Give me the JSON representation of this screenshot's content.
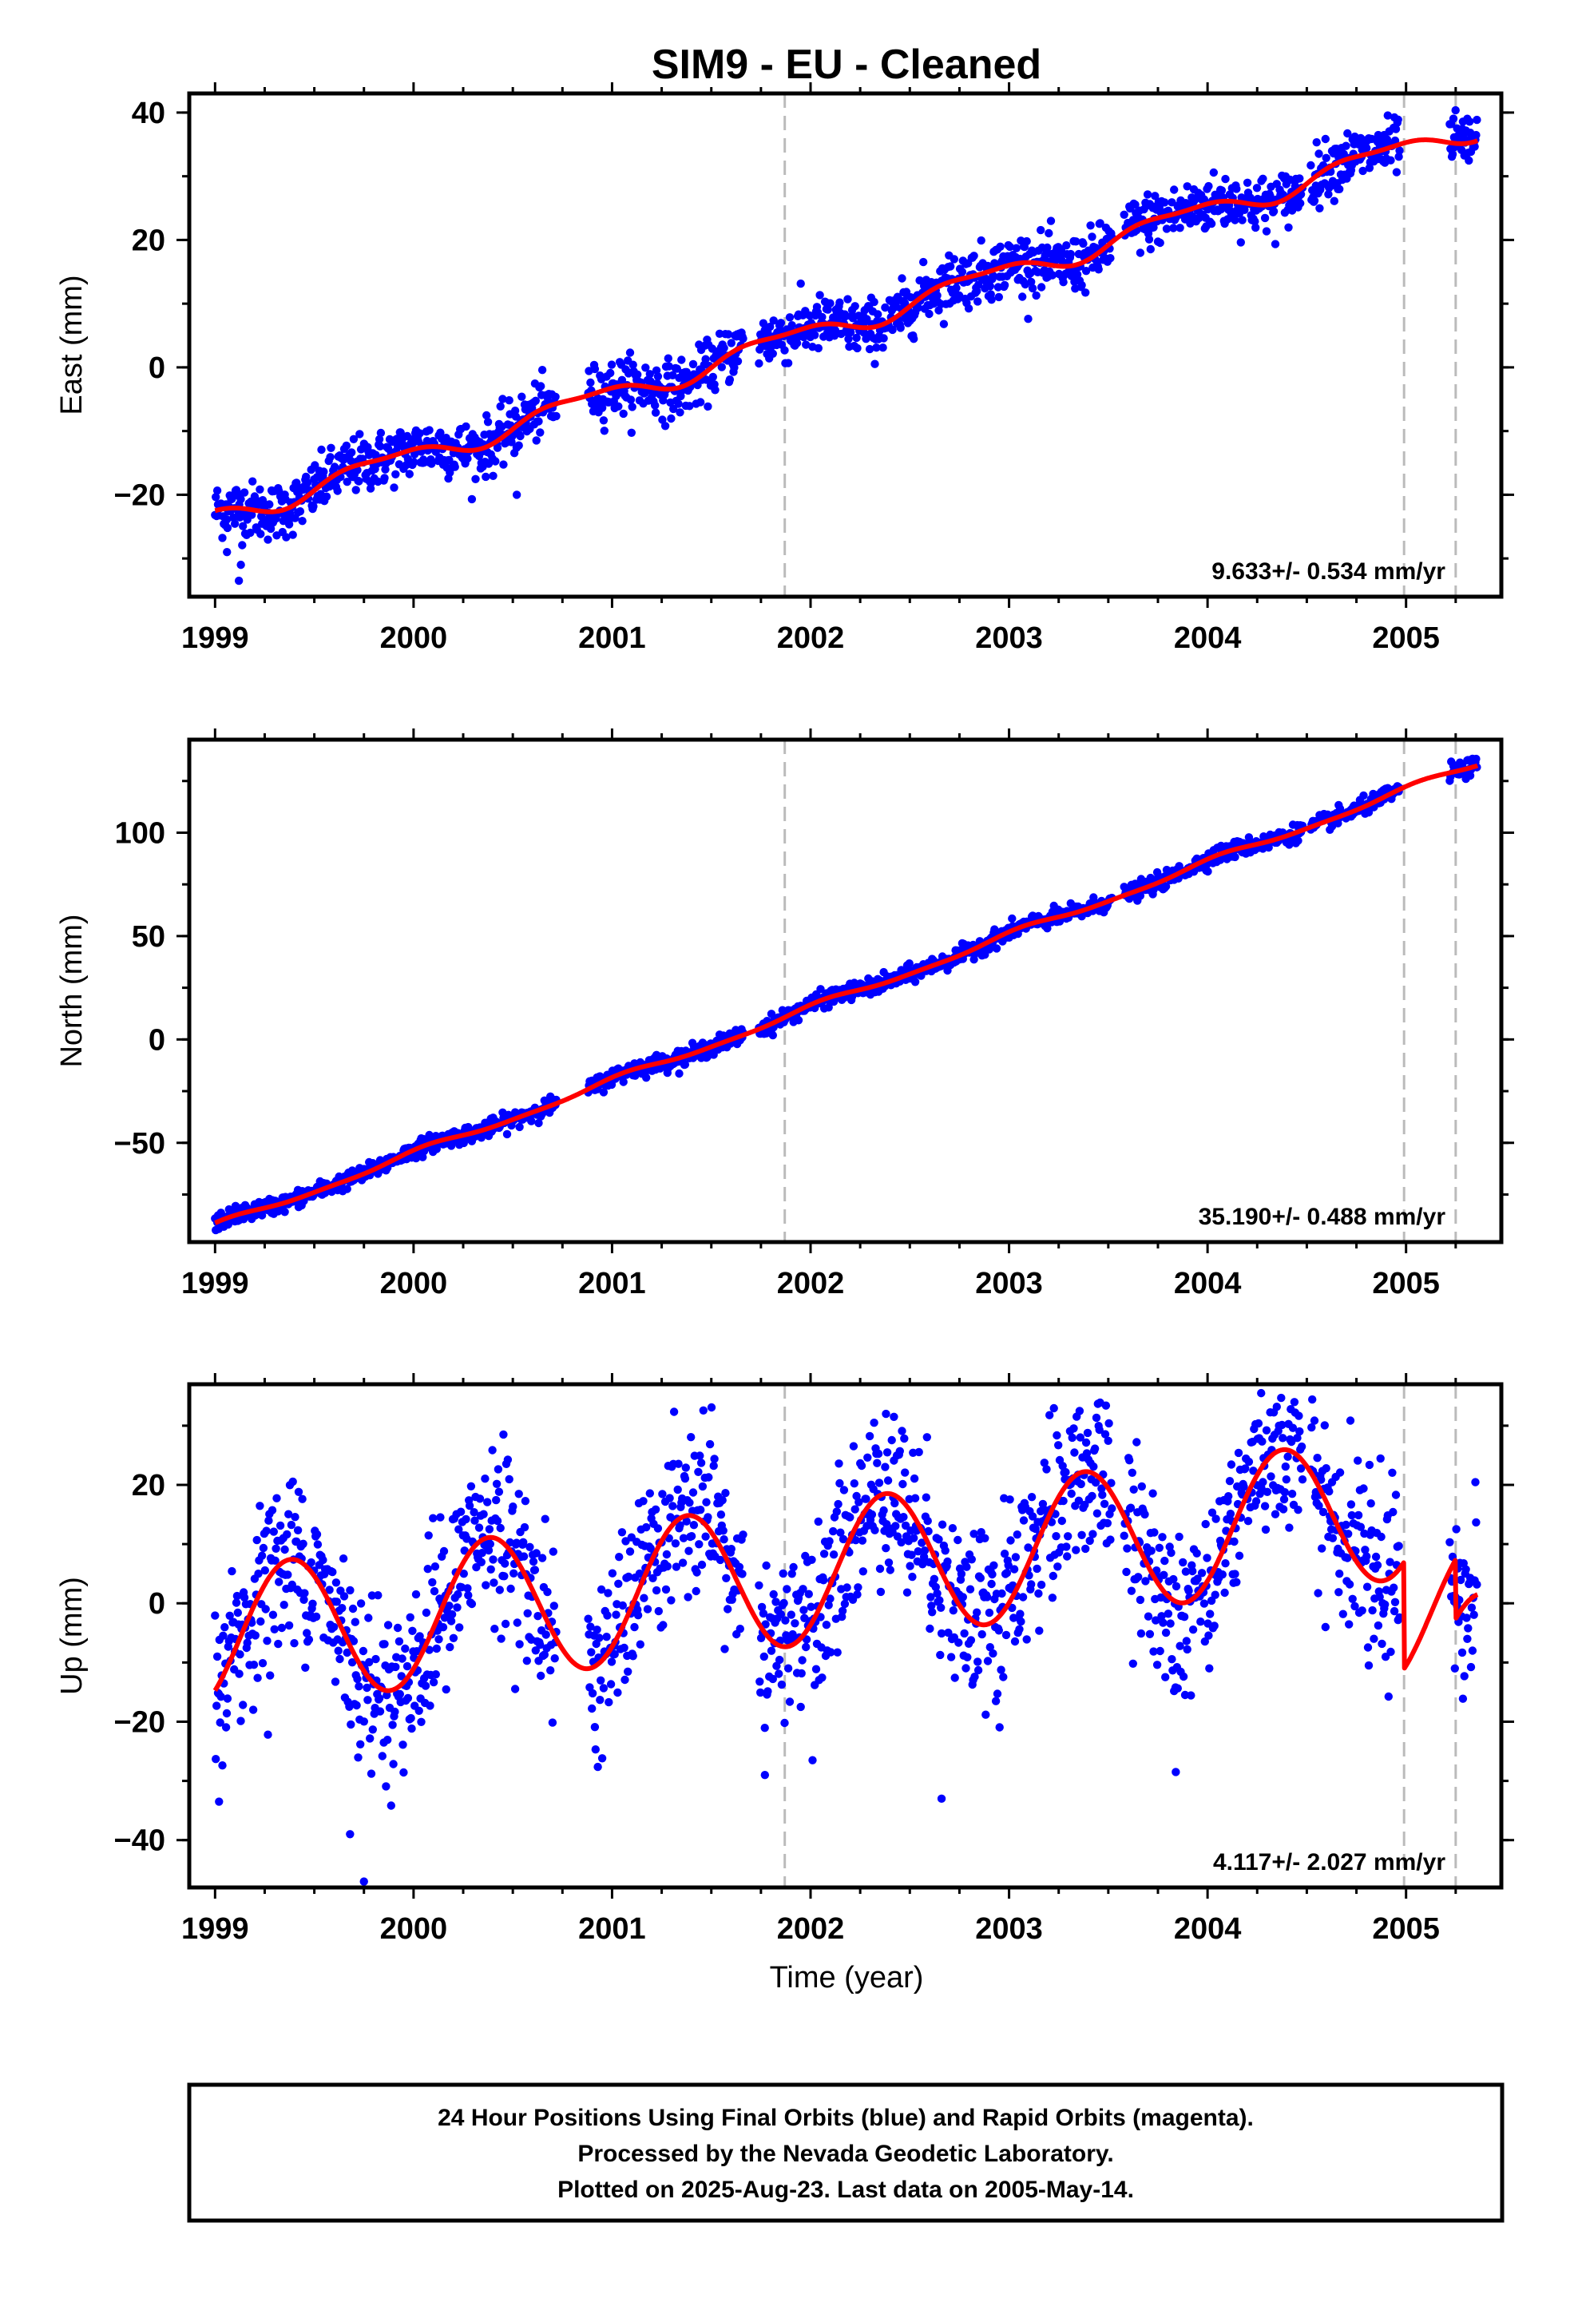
{
  "chart_data": {
    "title": "SIM9  - EU - Cleaned",
    "xlabel": "Time (year)",
    "x_ticks": [
      "1999",
      "2000",
      "2001",
      "2002",
      "2003",
      "2004",
      "2005"
    ],
    "xlim": [
      1998.87,
      2005.48
    ],
    "vertical_lines": [
      2001.87,
      2004.99,
      2005.25
    ],
    "colors": {
      "final_orbits": "#0000ff",
      "model_fit": "#ff0000",
      "event_line": "#bbbbbb"
    },
    "panels": [
      {
        "type": "scatter",
        "component": "East",
        "ylabel": "East (mm)",
        "ylim": [
          -36,
          43
        ],
        "y_ticks": [
          40,
          20,
          0,
          -20
        ],
        "y_tick_labels": [
          "40",
          "20",
          "0",
          "−20"
        ],
        "rate_label": "9.633+/- 0.534 mm/yr",
        "rate_mm_per_yr": 9.633,
        "anchor": {
          "t0": 1999.0,
          "y0": -23.5
        },
        "seasonal": {
          "annual_amp": 1.6,
          "annual_phase": 2.6,
          "semiannual_amp": 0.6,
          "semiannual_phase": 0.3
        },
        "noise_sd": 2.2,
        "steps": [],
        "outliers": [
          [
            1999.12,
            -33.5
          ],
          [
            1999.13,
            -31.0
          ],
          [
            1999.06,
            -29.0
          ],
          [
            2000.52,
            -20.0
          ]
        ]
      },
      {
        "type": "scatter",
        "component": "North",
        "ylabel": "North (mm)",
        "ylim": [
          -98,
          145
        ],
        "y_ticks": [
          100,
          50,
          0,
          -50
        ],
        "y_tick_labels": [
          "100",
          "50",
          "0",
          "−50"
        ],
        "rate_label": "35.190+/- 0.488 mm/yr",
        "rate_mm_per_yr": 35.19,
        "anchor": {
          "t0": 1999.0,
          "y0": -90.5
        },
        "seasonal": {
          "annual_amp": 1.5,
          "annual_phase": 1.2,
          "semiannual_amp": 0.5,
          "semiannual_phase": 0.8
        },
        "noise_sd": 2.0,
        "steps": [],
        "outliers": []
      },
      {
        "type": "scatter",
        "component": "Up",
        "ylabel": "Up (mm)",
        "ylim": [
          -48,
          37
        ],
        "y_ticks": [
          20,
          0,
          -20,
          -40
        ],
        "y_tick_labels": [
          "20",
          "0",
          "−20",
          "−40"
        ],
        "rate_label": "4.117+/- 2.027 mm/yr",
        "rate_mm_per_yr": 4.117,
        "anchor": {
          "t0": 1999.0,
          "y0": -10.0
        },
        "seasonal": {
          "annual_amp": 12.0,
          "annual_phase": 0.0,
          "semiannual_amp": 0.0,
          "semiannual_phase": 0.0
        },
        "noise_sd": 7.0,
        "steps": [
          [
            2004.99,
            -18.0
          ],
          [
            2005.25,
            -10.0
          ]
        ],
        "outliers": [
          [
            2004.27,
            35.5
          ],
          [
            2002.38,
            32.0
          ],
          [
            2002.42,
            31.5
          ],
          [
            1999.75,
            -47.0
          ],
          [
            1999.68,
            -39.0
          ],
          [
            2002.66,
            -33.0
          ],
          [
            1999.02,
            -33.5
          ],
          [
            2003.84,
            -28.5
          ],
          [
            2001.77,
            -29.0
          ],
          [
            2002.01,
            -26.5
          ]
        ]
      }
    ],
    "footer": [
      "24 Hour Positions Using Final Orbits (blue) and Rapid Orbits (magenta).",
      "Processed by the Nevada Geodetic Laboratory.",
      "Plotted on 2025-Aug-23. Last data on 2005-May-14."
    ]
  }
}
